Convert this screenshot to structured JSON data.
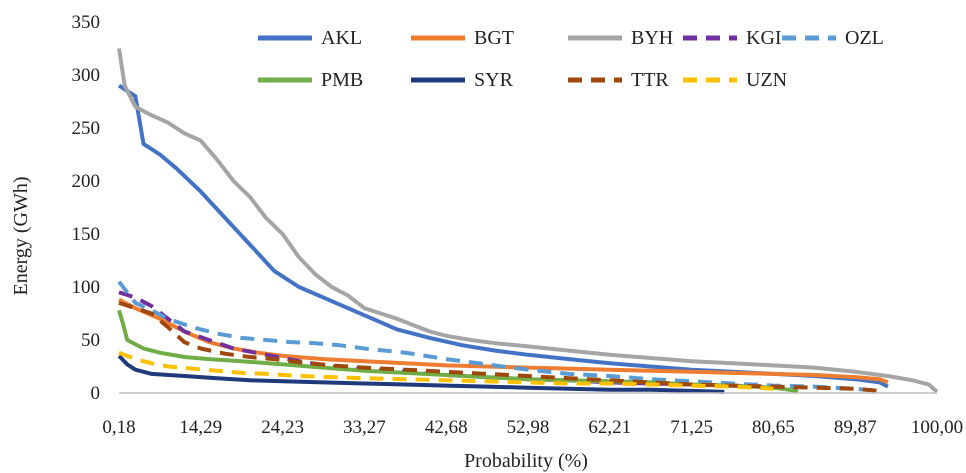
{
  "chart_data": {
    "type": "line",
    "title": "",
    "xlabel": "Probability (%)",
    "ylabel": "Energy (GWh)",
    "ylim": [
      0,
      350
    ],
    "xlim": [
      0,
      100
    ],
    "yticks": [
      0,
      50,
      100,
      150,
      200,
      250,
      300,
      350
    ],
    "xticks": [
      "0,18",
      "14,29",
      "24,23",
      "33,27",
      "42,68",
      "52,98",
      "62,21",
      "71,25",
      "80,65",
      "89,87",
      "100,00"
    ],
    "grid": false,
    "legend_position": "top",
    "series": [
      {
        "name": "AKL",
        "color": "#4472C4",
        "dash": false,
        "points": [
          [
            0,
            290
          ],
          [
            1,
            285
          ],
          [
            2,
            280
          ],
          [
            3,
            235
          ],
          [
            5,
            225
          ],
          [
            7,
            212
          ],
          [
            10,
            190
          ],
          [
            13,
            165
          ],
          [
            16,
            140
          ],
          [
            19,
            115
          ],
          [
            22,
            100
          ],
          [
            25,
            90
          ],
          [
            28,
            80
          ],
          [
            31,
            70
          ],
          [
            34,
            60
          ],
          [
            38,
            52
          ],
          [
            42,
            45
          ],
          [
            46,
            40
          ],
          [
            50,
            36
          ],
          [
            55,
            32
          ],
          [
            60,
            28
          ],
          [
            65,
            25
          ],
          [
            70,
            22
          ],
          [
            75,
            20
          ],
          [
            80,
            18
          ],
          [
            85,
            16
          ],
          [
            90,
            13
          ],
          [
            93,
            10
          ],
          [
            94,
            6
          ]
        ]
      },
      {
        "name": "BGT",
        "color": "#ED7D31",
        "dash": false,
        "points": [
          [
            0,
            88
          ],
          [
            2,
            80
          ],
          [
            5,
            70
          ],
          [
            8,
            58
          ],
          [
            11,
            48
          ],
          [
            14,
            42
          ],
          [
            17,
            38
          ],
          [
            20,
            35
          ],
          [
            25,
            32
          ],
          [
            30,
            30
          ],
          [
            35,
            28
          ],
          [
            40,
            26
          ],
          [
            45,
            25
          ],
          [
            50,
            24
          ],
          [
            55,
            23
          ],
          [
            60,
            22
          ],
          [
            65,
            21
          ],
          [
            70,
            20
          ],
          [
            75,
            19
          ],
          [
            80,
            18
          ],
          [
            85,
            17
          ],
          [
            90,
            15
          ],
          [
            93,
            13
          ],
          [
            94,
            10
          ]
        ]
      },
      {
        "name": "BYH",
        "color": "#A5A5A5",
        "dash": false,
        "points": [
          [
            0,
            325
          ],
          [
            0.7,
            290
          ],
          [
            2,
            270
          ],
          [
            4,
            262
          ],
          [
            6,
            255
          ],
          [
            8,
            245
          ],
          [
            10,
            238
          ],
          [
            12,
            220
          ],
          [
            14,
            200
          ],
          [
            16,
            185
          ],
          [
            18,
            165
          ],
          [
            20,
            150
          ],
          [
            22,
            128
          ],
          [
            24,
            112
          ],
          [
            26,
            100
          ],
          [
            28,
            92
          ],
          [
            30,
            80
          ],
          [
            32,
            75
          ],
          [
            34,
            70
          ],
          [
            36,
            64
          ],
          [
            38,
            58
          ],
          [
            40,
            54
          ],
          [
            43,
            50
          ],
          [
            46,
            47
          ],
          [
            50,
            44
          ],
          [
            55,
            40
          ],
          [
            60,
            36
          ],
          [
            65,
            33
          ],
          [
            70,
            30
          ],
          [
            75,
            28
          ],
          [
            80,
            26
          ],
          [
            85,
            24
          ],
          [
            90,
            20
          ],
          [
            94,
            16
          ],
          [
            97,
            12
          ],
          [
            99,
            8
          ],
          [
            100,
            1
          ]
        ]
      },
      {
        "name": "KGI",
        "color": "#7030A0",
        "dash": true,
        "points": [
          [
            0,
            95
          ],
          [
            2,
            90
          ],
          [
            4,
            82
          ],
          [
            6,
            70
          ],
          [
            8,
            58
          ],
          [
            11,
            50
          ],
          [
            14,
            42
          ],
          [
            18,
            36
          ],
          [
            22,
            30
          ],
          [
            26,
            25
          ],
          [
            30,
            22
          ],
          [
            35,
            20
          ],
          [
            40,
            17
          ],
          [
            45,
            15
          ],
          [
            50,
            13
          ],
          [
            55,
            12
          ],
          [
            60,
            10
          ],
          [
            65,
            9
          ],
          [
            70,
            8
          ],
          [
            75,
            7
          ],
          [
            80,
            6
          ],
          [
            83,
            5
          ]
        ]
      },
      {
        "name": "OZL",
        "color": "#5B9BD5",
        "dash": true,
        "points": [
          [
            0,
            105
          ],
          [
            1,
            95
          ],
          [
            2,
            85
          ],
          [
            4,
            78
          ],
          [
            6,
            70
          ],
          [
            9,
            62
          ],
          [
            12,
            56
          ],
          [
            15,
            52
          ],
          [
            18,
            50
          ],
          [
            21,
            48
          ],
          [
            24,
            47
          ],
          [
            27,
            45
          ],
          [
            30,
            42
          ],
          [
            35,
            38
          ],
          [
            40,
            32
          ],
          [
            45,
            27
          ],
          [
            50,
            22
          ],
          [
            55,
            18
          ],
          [
            60,
            16
          ],
          [
            65,
            13
          ],
          [
            70,
            11
          ],
          [
            75,
            9
          ],
          [
            80,
            7
          ],
          [
            85,
            6
          ],
          [
            90,
            4
          ],
          [
            93,
            2
          ]
        ]
      },
      {
        "name": "PMB",
        "color": "#70AD47",
        "dash": false,
        "points": [
          [
            0,
            78
          ],
          [
            0.5,
            65
          ],
          [
            1,
            50
          ],
          [
            3,
            42
          ],
          [
            5,
            38
          ],
          [
            8,
            34
          ],
          [
            11,
            32
          ],
          [
            15,
            30
          ],
          [
            20,
            27
          ],
          [
            25,
            24
          ],
          [
            30,
            21
          ],
          [
            35,
            19
          ],
          [
            40,
            17
          ],
          [
            45,
            15
          ],
          [
            50,
            13
          ],
          [
            55,
            12
          ],
          [
            60,
            11
          ],
          [
            65,
            10
          ],
          [
            70,
            8
          ],
          [
            75,
            7
          ],
          [
            80,
            5
          ],
          [
            82,
            3
          ],
          [
            83,
            1
          ]
        ]
      },
      {
        "name": "SYR",
        "color": "#1F3A7A",
        "dash": false,
        "points": [
          [
            0,
            35
          ],
          [
            1,
            27
          ],
          [
            2,
            22
          ],
          [
            4,
            18
          ],
          [
            8,
            16
          ],
          [
            12,
            14
          ],
          [
            16,
            12
          ],
          [
            20,
            11
          ],
          [
            25,
            10
          ],
          [
            30,
            9
          ],
          [
            35,
            8
          ],
          [
            40,
            7
          ],
          [
            45,
            6
          ],
          [
            50,
            5
          ],
          [
            55,
            4
          ],
          [
            60,
            3
          ],
          [
            65,
            3
          ],
          [
            70,
            2
          ],
          [
            74,
            1
          ]
        ]
      },
      {
        "name": "TTR",
        "color": "#9E480E",
        "dash": true,
        "points": [
          [
            0,
            85
          ],
          [
            2,
            80
          ],
          [
            4,
            75
          ],
          [
            6,
            62
          ],
          [
            8,
            48
          ],
          [
            10,
            42
          ],
          [
            13,
            37
          ],
          [
            16,
            34
          ],
          [
            19,
            32
          ],
          [
            22,
            29
          ],
          [
            26,
            26
          ],
          [
            30,
            24
          ],
          [
            35,
            22
          ],
          [
            40,
            20
          ],
          [
            45,
            18
          ],
          [
            50,
            16
          ],
          [
            55,
            14
          ],
          [
            60,
            12
          ],
          [
            65,
            10
          ],
          [
            70,
            8
          ],
          [
            75,
            7
          ],
          [
            80,
            6
          ],
          [
            85,
            5
          ],
          [
            90,
            4
          ],
          [
            93,
            2
          ]
        ]
      },
      {
        "name": "UZN",
        "color": "#FFC000",
        "dash": true,
        "points": [
          [
            0,
            38
          ],
          [
            2,
            32
          ],
          [
            4,
            28
          ],
          [
            6,
            25
          ],
          [
            9,
            23
          ],
          [
            12,
            21
          ],
          [
            15,
            19
          ],
          [
            18,
            18
          ],
          [
            22,
            16
          ],
          [
            26,
            15
          ],
          [
            30,
            14
          ],
          [
            35,
            13
          ],
          [
            40,
            12
          ],
          [
            45,
            11
          ],
          [
            50,
            10
          ],
          [
            55,
            9
          ],
          [
            60,
            9
          ],
          [
            65,
            8
          ],
          [
            70,
            7
          ],
          [
            75,
            6
          ],
          [
            78,
            5
          ],
          [
            80,
            4
          ]
        ]
      }
    ]
  }
}
